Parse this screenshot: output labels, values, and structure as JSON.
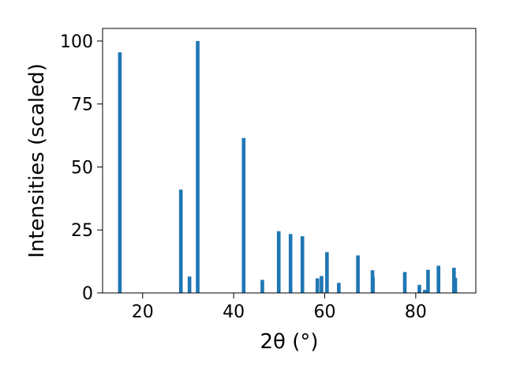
{
  "chart_data": {
    "type": "bar",
    "title": "",
    "xlabel": "2θ (°)",
    "ylabel": "Intensities (scaled)",
    "xlim": [
      11.2,
      93.2
    ],
    "ylim": [
      0,
      105
    ],
    "xticks": [
      20,
      40,
      60,
      80
    ],
    "yticks": [
      0,
      25,
      50,
      75,
      100
    ],
    "grid": false,
    "bar_color": "#1f77b4",
    "bar_width": 0.8,
    "x": [
      15.0,
      28.4,
      30.3,
      32.1,
      42.2,
      46.3,
      49.9,
      52.5,
      55.1,
      58.4,
      59.3,
      60.5,
      63.1,
      67.3,
      70.5,
      70.6,
      77.6,
      80.8,
      82.0,
      82.7,
      85.0,
      88.4,
      88.7
    ],
    "values": [
      95.5,
      41.0,
      6.5,
      100.0,
      61.5,
      5.2,
      24.5,
      23.4,
      22.5,
      5.8,
      6.7,
      16.2,
      4.0,
      14.9,
      9.0,
      6.2,
      8.3,
      3.2,
      1.2,
      9.2,
      10.8,
      10.0,
      6.0
    ]
  }
}
